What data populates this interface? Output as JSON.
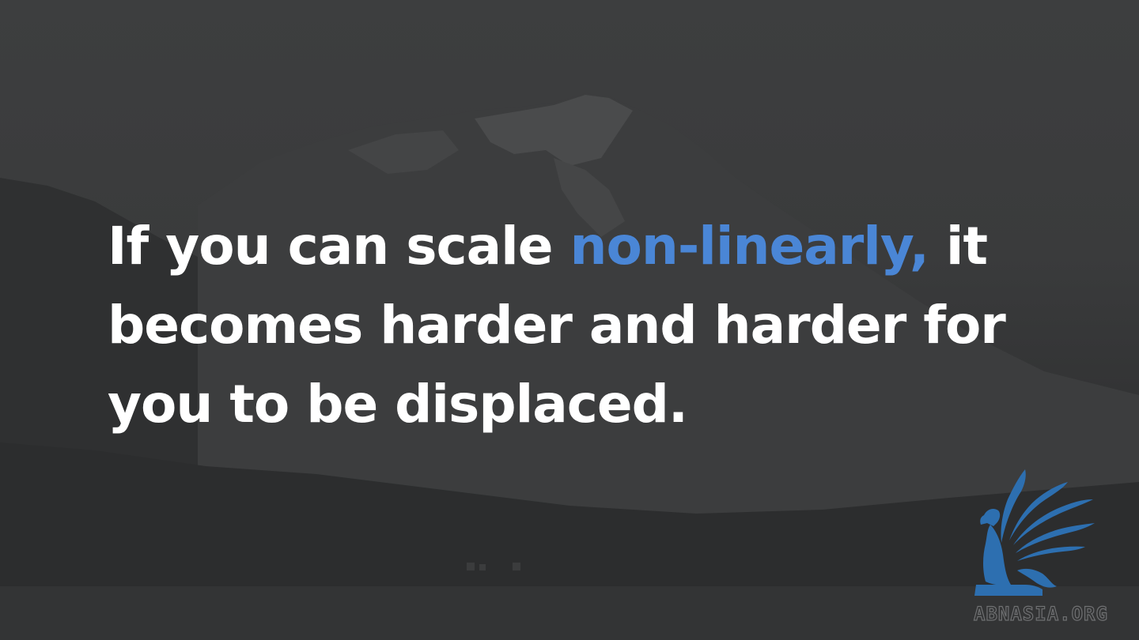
{
  "quote": {
    "part1": "If you can scale ",
    "highlight": "non-linearly,",
    "part2": " it becomes harder and harder for you to be displaced."
  },
  "brand": {
    "text": "ABNASIA.ORG",
    "logo_icon": "winged-griffin-icon"
  },
  "colors": {
    "background": "#3a3b3c",
    "text": "#ffffff",
    "highlight": "#4a86d6",
    "brand": "#2d6fb0"
  }
}
